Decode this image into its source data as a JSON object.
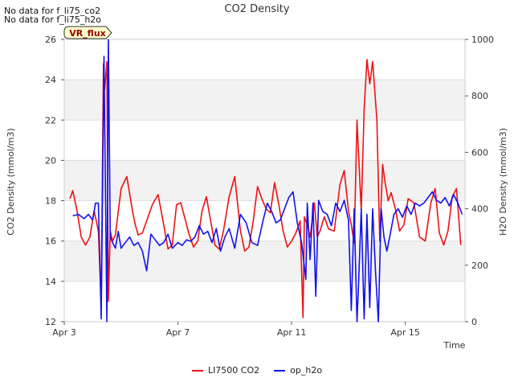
{
  "notes": [
    "No data for f_li75_co2",
    "No data for f_li75_h2o"
  ],
  "site_badge": "VR_flux",
  "chart_data": {
    "type": "line",
    "title": "CO2 Density",
    "xlabel": "Time",
    "ylabel": "CO2 Density (mmol/m3)",
    "y2label": "H2O Density (mmol/m3)",
    "xlim": [
      3.0,
      17.1
    ],
    "ylim": [
      12,
      26
    ],
    "y2lim": [
      0,
      1000
    ],
    "x_ticks": [
      3,
      7,
      11,
      15
    ],
    "x_tick_labels": [
      "Apr 3",
      "Apr 7",
      "Apr 11",
      "Apr 15"
    ],
    "y_ticks": [
      12,
      14,
      16,
      18,
      20,
      22,
      24,
      26
    ],
    "y2_ticks": [
      0,
      200,
      400,
      600,
      800,
      1000
    ],
    "bands": [
      [
        14,
        16
      ],
      [
        18,
        20
      ],
      [
        22,
        24
      ]
    ],
    "series": [
      {
        "name": "LI7500 CO2",
        "axis": "left",
        "color": "#ee1111",
        "x": [
          3.2,
          3.3,
          3.45,
          3.6,
          3.75,
          3.9,
          4.05,
          4.2,
          4.3,
          4.38,
          4.42,
          4.5,
          4.55,
          4.62,
          4.7,
          4.8,
          5.0,
          5.2,
          5.4,
          5.5,
          5.6,
          5.75,
          5.9,
          6.1,
          6.3,
          6.5,
          6.65,
          6.8,
          6.95,
          7.1,
          7.25,
          7.4,
          7.55,
          7.7,
          7.85,
          8.0,
          8.15,
          8.3,
          8.45,
          8.6,
          8.8,
          9.0,
          9.2,
          9.35,
          9.5,
          9.65,
          9.8,
          9.95,
          10.1,
          10.25,
          10.4,
          10.55,
          10.7,
          10.85,
          11.0,
          11.15,
          11.3,
          11.4,
          11.45,
          11.55,
          11.65,
          11.8,
          11.9,
          12.0,
          12.15,
          12.3,
          12.5,
          12.7,
          12.85,
          13.0,
          13.1,
          13.2,
          13.3,
          13.45,
          13.55,
          13.65,
          13.75,
          13.85,
          14.0,
          14.1,
          14.2,
          14.3,
          14.4,
          14.5,
          14.65,
          14.8,
          14.95,
          15.1,
          15.3,
          15.5,
          15.7,
          15.9,
          16.05,
          16.2,
          16.35,
          16.5,
          16.65,
          16.8,
          16.95
        ],
        "y": [
          18.1,
          18.5,
          17.5,
          16.2,
          15.8,
          16.2,
          17.5,
          16.5,
          13.0,
          24.8,
          23.5,
          24.9,
          13.0,
          16.5,
          16.0,
          16.3,
          18.6,
          19.2,
          17.5,
          16.8,
          16.3,
          16.4,
          17.0,
          17.8,
          18.3,
          16.8,
          15.6,
          15.8,
          17.8,
          17.9,
          17.1,
          16.3,
          15.7,
          16.0,
          17.5,
          18.2,
          17.0,
          15.8,
          15.6,
          16.5,
          18.2,
          19.2,
          16.5,
          15.5,
          15.7,
          17.0,
          18.7,
          18.1,
          17.6,
          17.4,
          18.9,
          17.8,
          16.5,
          15.7,
          16.0,
          16.4,
          17.0,
          12.2,
          17.2,
          16.8,
          16.2,
          17.9,
          16.2,
          16.5,
          17.2,
          16.6,
          16.5,
          18.8,
          19.5,
          17.5,
          16.8,
          15.9,
          22.0,
          17.5,
          22.5,
          25.0,
          23.8,
          24.9,
          22.0,
          16.0,
          19.8,
          18.8,
          18.0,
          18.4,
          17.6,
          16.5,
          16.8,
          18.1,
          17.9,
          16.2,
          16.0,
          17.9,
          18.6,
          16.4,
          15.8,
          16.5,
          18.2,
          18.6,
          15.8
        ]
      },
      {
        "name": "op_h2o",
        "axis": "right",
        "color": "#1111ee",
        "x": [
          3.3,
          3.5,
          3.7,
          3.85,
          4.0,
          4.1,
          4.2,
          4.3,
          4.4,
          4.5,
          4.55,
          4.62,
          4.7,
          4.8,
          4.9,
          5.0,
          5.15,
          5.3,
          5.45,
          5.6,
          5.75,
          5.9,
          6.05,
          6.2,
          6.35,
          6.5,
          6.65,
          6.8,
          7.0,
          7.15,
          7.3,
          7.45,
          7.6,
          7.75,
          7.9,
          8.05,
          8.2,
          8.35,
          8.5,
          8.65,
          8.8,
          9.0,
          9.2,
          9.4,
          9.6,
          9.8,
          10.0,
          10.15,
          10.3,
          10.45,
          10.6,
          10.75,
          10.9,
          11.05,
          11.2,
          11.35,
          11.5,
          11.55,
          11.65,
          11.75,
          11.85,
          11.95,
          12.1,
          12.25,
          12.4,
          12.55,
          12.7,
          12.85,
          13.0,
          13.1,
          13.2,
          13.3,
          13.35,
          13.45,
          13.55,
          13.65,
          13.75,
          13.85,
          13.95,
          14.05,
          14.15,
          14.25,
          14.35,
          14.45,
          14.6,
          14.75,
          14.9,
          15.05,
          15.2,
          15.35,
          15.5,
          15.65,
          15.8,
          15.95,
          16.1,
          16.25,
          16.4,
          16.55,
          16.7,
          16.85,
          17.0
        ],
        "y": [
          375,
          380,
          365,
          380,
          360,
          420,
          420,
          10,
          940,
          0,
          1000,
          300,
          280,
          260,
          320,
          260,
          280,
          300,
          270,
          280,
          250,
          180,
          310,
          290,
          270,
          280,
          310,
          260,
          280,
          270,
          290,
          285,
          300,
          340,
          310,
          320,
          280,
          330,
          250,
          300,
          330,
          260,
          380,
          350,
          280,
          270,
          360,
          420,
          390,
          350,
          360,
          400,
          440,
          460,
          350,
          280,
          150,
          420,
          220,
          420,
          90,
          430,
          390,
          380,
          340,
          420,
          390,
          430,
          360,
          40,
          400,
          0,
          120,
          400,
          10,
          380,
          50,
          400,
          180,
          0,
          400,
          300,
          250,
          300,
          380,
          400,
          370,
          410,
          380,
          420,
          410,
          420,
          440,
          460,
          430,
          420,
          440,
          410,
          450,
          420,
          380
        ]
      }
    ]
  },
  "legend": [
    "LI7500 CO2",
    "op_h2o"
  ]
}
